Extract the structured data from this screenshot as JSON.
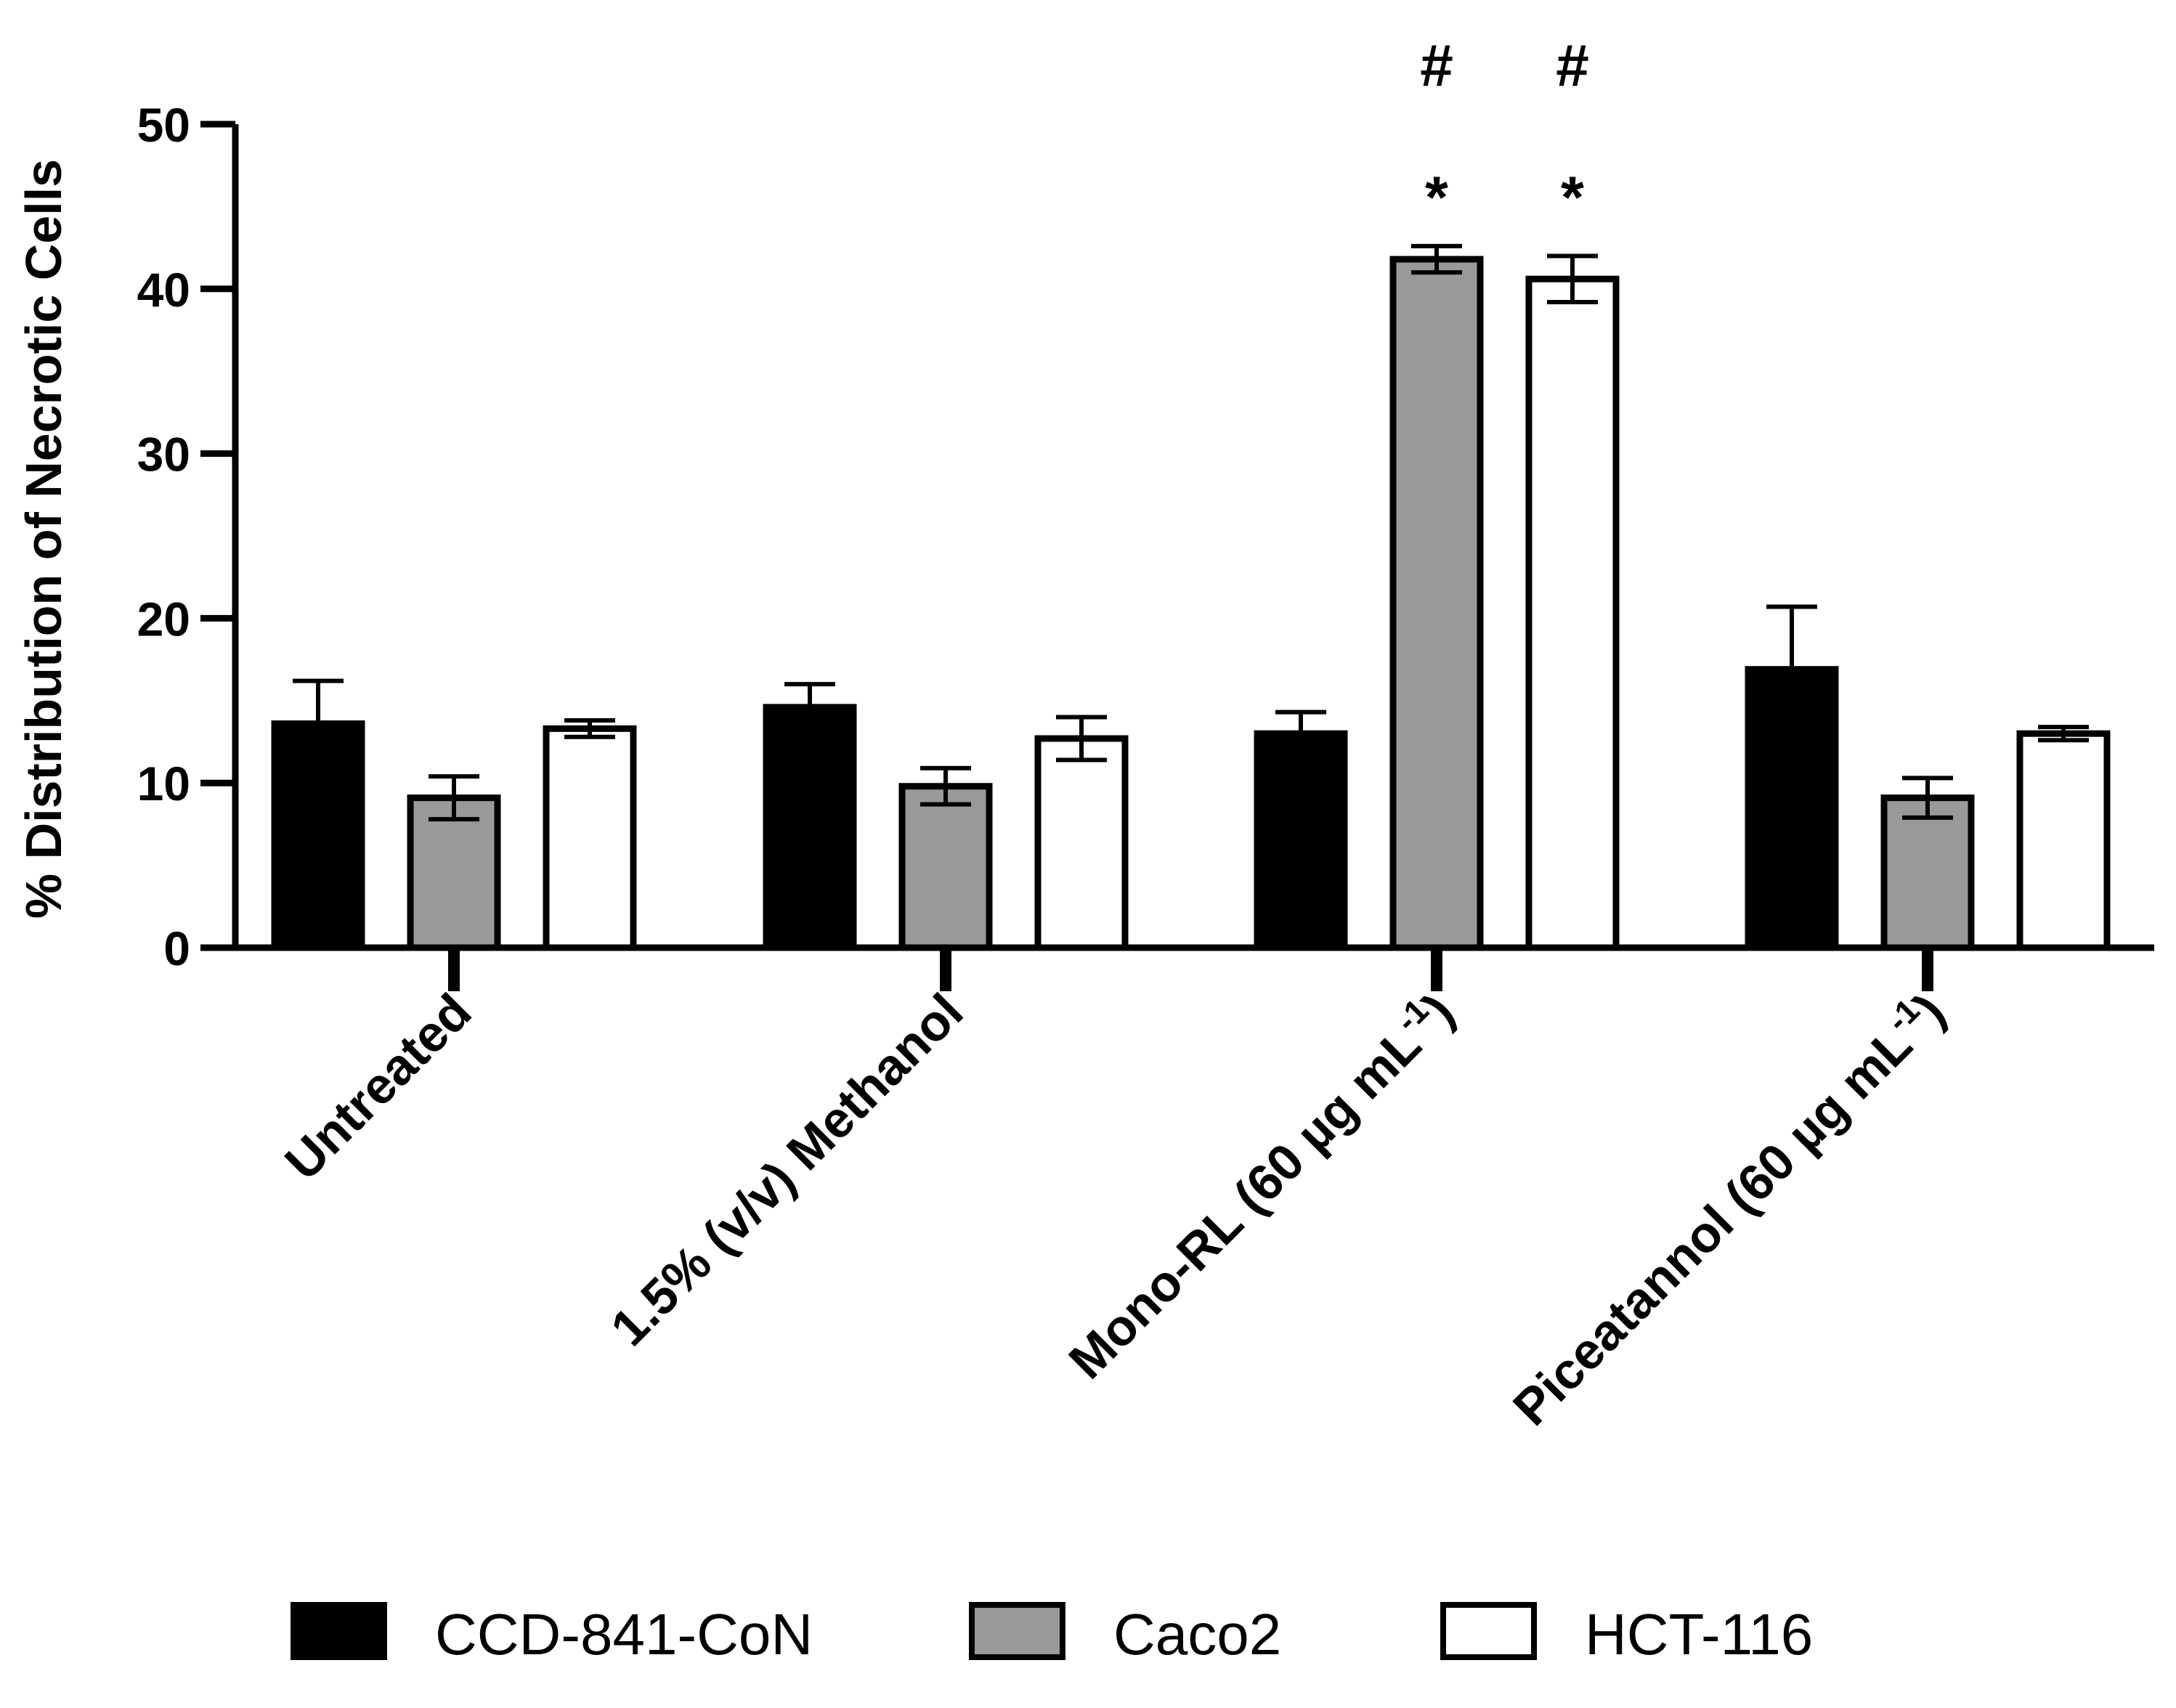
{
  "chart_data": {
    "type": "bar",
    "title": "",
    "xlabel": "",
    "ylabel": "% Distribution of Necrotic Cells",
    "ylim": [
      0,
      50
    ],
    "yticks": [
      0,
      10,
      20,
      30,
      40,
      50
    ],
    "grid": false,
    "legend_position": "bottom",
    "categories": [
      {
        "prefix": "Untreated",
        "sup": "",
        "suffix": ""
      },
      {
        "prefix": "1.5% (v/v) Methanol",
        "sup": "",
        "suffix": ""
      },
      {
        "prefix": "Mono-RL (60 µg mL",
        "sup": "-1",
        "suffix": ")"
      },
      {
        "prefix": "Piceatannol (60 µg mL",
        "sup": "-1",
        "suffix": ")"
      }
    ],
    "series": [
      {
        "name": "CCD-841-CoN",
        "color": "#000000",
        "values": [
          13.6,
          14.6,
          13.0,
          16.9
        ],
        "errors": [
          2.6,
          1.4,
          1.3,
          3.8
        ],
        "annotations": [
          [],
          [],
          [],
          []
        ]
      },
      {
        "name": "Caco2",
        "color": "#999999",
        "values": [
          9.1,
          9.8,
          41.8,
          9.1
        ],
        "errors": [
          1.3,
          1.1,
          0.8,
          1.2
        ],
        "annotations": [
          [],
          [],
          [
            "*",
            "#"
          ],
          []
        ]
      },
      {
        "name": "HCT-116",
        "color": "#ffffff",
        "values": [
          13.3,
          12.7,
          40.6,
          13.0
        ],
        "errors": [
          0.5,
          1.3,
          1.4,
          0.4
        ],
        "annotations": [
          [],
          [],
          [
            "*",
            "#"
          ],
          []
        ]
      }
    ]
  }
}
